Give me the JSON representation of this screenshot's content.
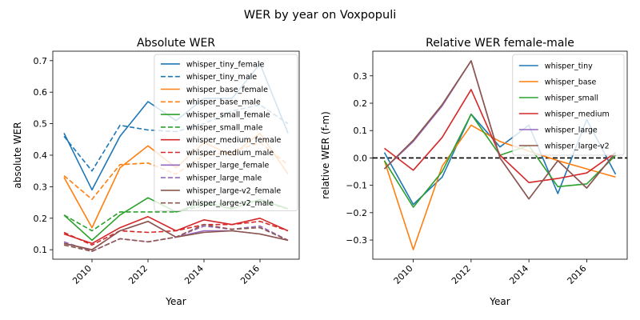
{
  "figure": {
    "suptitle": "WER by year on Voxpopuli"
  },
  "chart_data": [
    {
      "type": "line",
      "title": "Absolute WER",
      "xlabel": "Year",
      "ylabel": "absolute WER",
      "xlim": [
        2008.6,
        2017.4
      ],
      "ylim": [
        0.07,
        0.73
      ],
      "xticks": [
        2010,
        2012,
        2014,
        2016
      ],
      "yticks": [
        0.1,
        0.2,
        0.3,
        0.4,
        0.5,
        0.6,
        0.7
      ],
      "ytick_labels": [
        "0.1",
        "0.2",
        "0.3",
        "0.4",
        "0.5",
        "0.6",
        "0.7"
      ],
      "legend_position": "top-right",
      "x": [
        2009,
        2010,
        2011,
        2012,
        2013,
        2014,
        2015,
        2016,
        2017
      ],
      "series": [
        {
          "name": "whisper_tiny_female",
          "color": "#1f77b4",
          "dash": "solid",
          "values": [
            0.47,
            0.29,
            0.46,
            0.57,
            0.51,
            0.58,
            0.58,
            0.69,
            0.47
          ]
        },
        {
          "name": "whisper_tiny_male",
          "color": "#1f77b4",
          "dash": "dashed",
          "values": [
            0.46,
            0.35,
            0.495,
            0.48,
            0.475,
            0.5,
            0.54,
            0.56,
            0.5
          ]
        },
        {
          "name": "whisper_base_female",
          "color": "#ff7f0e",
          "dash": "solid",
          "values": [
            0.33,
            0.17,
            0.36,
            0.43,
            0.36,
            0.44,
            0.4,
            0.47,
            0.34
          ]
        },
        {
          "name": "whisper_base_male",
          "color": "#ff7f0e",
          "dash": "dashed",
          "values": [
            0.335,
            0.26,
            0.37,
            0.375,
            0.34,
            0.4,
            0.41,
            0.44,
            0.37
          ]
        },
        {
          "name": "whisper_small_female",
          "color": "#2ca02c",
          "dash": "solid",
          "values": [
            0.21,
            0.13,
            0.21,
            0.265,
            0.22,
            0.25,
            0.23,
            0.26,
            0.23
          ]
        },
        {
          "name": "whisper_small_male",
          "color": "#2ca02c",
          "dash": "dashed",
          "values": [
            0.21,
            0.16,
            0.22,
            0.22,
            0.22,
            0.24,
            0.25,
            0.255,
            0.23
          ]
        },
        {
          "name": "whisper_medium_female",
          "color": "#d62728",
          "dash": "solid",
          "values": [
            0.15,
            0.12,
            0.17,
            0.205,
            0.16,
            0.195,
            0.18,
            0.2,
            0.16
          ]
        },
        {
          "name": "whisper_medium_male",
          "color": "#d62728",
          "dash": "dashed",
          "values": [
            0.155,
            0.115,
            0.16,
            0.155,
            0.16,
            0.18,
            0.18,
            0.19,
            0.16
          ]
        },
        {
          "name": "whisper_large_female",
          "color": "#9467bd",
          "dash": "solid",
          "values": [
            0.12,
            0.1,
            0.16,
            0.19,
            0.14,
            0.16,
            0.16,
            0.15,
            0.13
          ]
        },
        {
          "name": "whisper_large_male",
          "color": "#9467bd",
          "dash": "dashed",
          "values": [
            0.125,
            0.095,
            0.135,
            0.125,
            0.14,
            0.175,
            0.165,
            0.175,
            0.13
          ]
        },
        {
          "name": "whisper_large-v2_female",
          "color": "#8c564b",
          "dash": "solid",
          "values": [
            0.12,
            0.1,
            0.16,
            0.19,
            0.14,
            0.155,
            0.16,
            0.15,
            0.13
          ]
        },
        {
          "name": "whisper_large-v2_male",
          "color": "#8c564b",
          "dash": "dashed",
          "values": [
            0.115,
            0.095,
            0.135,
            0.125,
            0.14,
            0.18,
            0.165,
            0.17,
            0.13
          ]
        }
      ]
    },
    {
      "type": "line",
      "title": "Relative WER female-male",
      "xlabel": "Year",
      "ylabel": "relative WER (f-m)",
      "xlim": [
        2008.6,
        2017.4
      ],
      "ylim": [
        -0.37,
        0.39
      ],
      "xticks": [
        2010,
        2012,
        2014,
        2016
      ],
      "yticks": [
        -0.3,
        -0.2,
        -0.1,
        0.0,
        0.1,
        0.2,
        0.3
      ],
      "ytick_labels": [
        "−0.3",
        "−0.2",
        "−0.1",
        "0.0",
        "0.1",
        "0.2",
        "0.3"
      ],
      "reference_line": {
        "y": 0.0,
        "color": "#000000",
        "dash": "dashed"
      },
      "legend_position": "top-right",
      "x": [
        2009,
        2010,
        2011,
        2012,
        2013,
        2014,
        2015,
        2016,
        2017
      ],
      "series": [
        {
          "name": "whisper_tiny",
          "color": "#1f77b4",
          "dash": "solid",
          "values": [
            0.02,
            -0.17,
            -0.07,
            0.16,
            0.04,
            0.12,
            -0.13,
            0.14,
            -0.06
          ]
        },
        {
          "name": "whisper_base",
          "color": "#ff7f0e",
          "dash": "solid",
          "values": [
            -0.01,
            -0.335,
            -0.03,
            0.12,
            0.06,
            0.025,
            -0.01,
            -0.04,
            -0.07
          ]
        },
        {
          "name": "whisper_small",
          "color": "#2ca02c",
          "dash": "solid",
          "values": [
            -0.01,
            -0.18,
            -0.05,
            0.16,
            0.01,
            0.045,
            -0.105,
            -0.095,
            0.01
          ]
        },
        {
          "name": "whisper_medium",
          "color": "#d62728",
          "dash": "solid",
          "values": [
            0.035,
            -0.045,
            0.075,
            0.25,
            0.01,
            -0.09,
            -0.075,
            -0.055,
            0.02
          ]
        },
        {
          "name": "whisper_large",
          "color": "#9467bd",
          "dash": "solid",
          "values": [
            -0.04,
            0.06,
            0.19,
            0.355,
            0.0,
            -0.15,
            -0.01,
            -0.11,
            0.02
          ]
        },
        {
          "name": "whisper_large-v2",
          "color": "#8c564b",
          "dash": "solid",
          "values": [
            -0.04,
            0.065,
            0.195,
            0.355,
            0.0,
            -0.15,
            -0.01,
            -0.11,
            0.02
          ]
        }
      ]
    }
  ]
}
